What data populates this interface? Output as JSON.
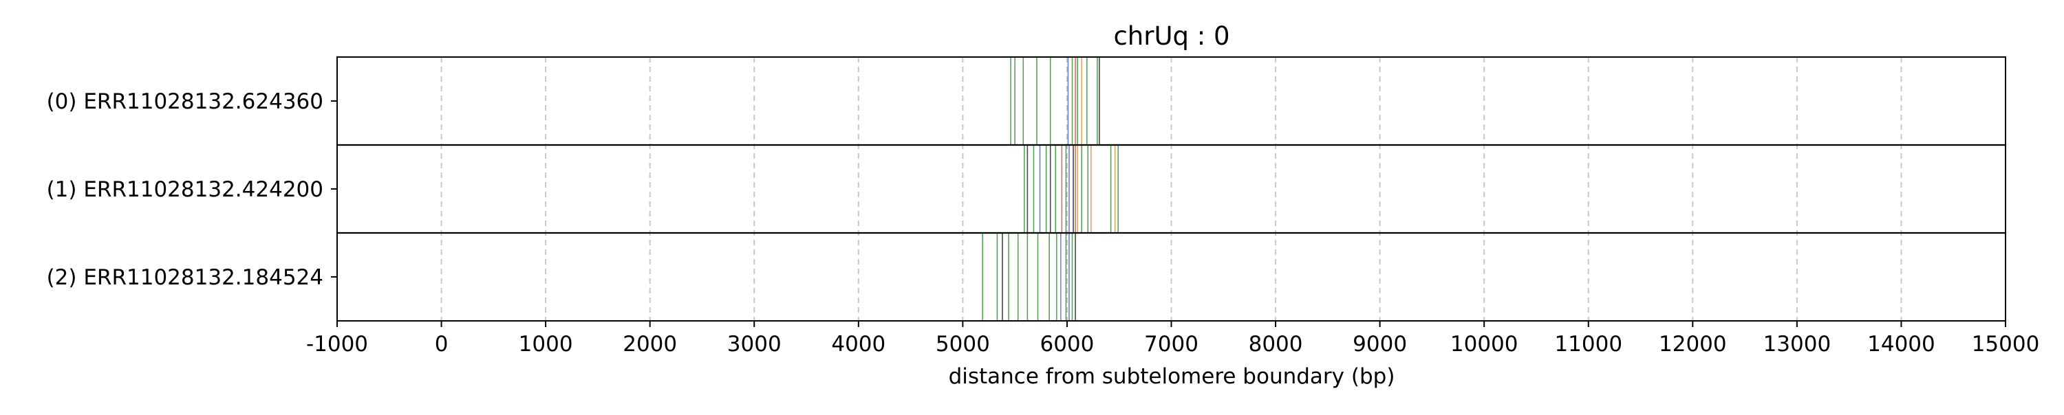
{
  "chart_data": {
    "type": "event-track",
    "title": "chrUq : 0",
    "xlabel": "distance from subtelomere boundary (bp)",
    "ylabel": "",
    "xlim": [
      -1000,
      15000
    ],
    "x_ticks": [
      -1000,
      0,
      1000,
      2000,
      3000,
      4000,
      5000,
      6000,
      7000,
      8000,
      9000,
      10000,
      11000,
      12000,
      13000,
      14000,
      15000
    ],
    "x_tick_labels": [
      "-1000",
      "0",
      "1000",
      "2000",
      "3000",
      "4000",
      "5000",
      "6000",
      "7000",
      "8000",
      "9000",
      "10000",
      "11000",
      "12000",
      "13000",
      "14000",
      "15000"
    ],
    "grid": {
      "x": true,
      "style": "dashed",
      "color": "#c8c8c8"
    },
    "series_colors": {
      "green": "#2e8b2e",
      "red": "#d24a3a",
      "blue": "#4a5fd2",
      "orange": "#e0902e",
      "black": "#1a1a1a"
    },
    "rows": [
      {
        "label": "(0) ERR11028132.624360",
        "events": [
          {
            "x": 5460,
            "color": "#2e8b2e"
          },
          {
            "x": 5500,
            "color": "#2e8b2e"
          },
          {
            "x": 5580,
            "color": "#2e8b2e"
          },
          {
            "x": 5710,
            "color": "#2e8b2e"
          },
          {
            "x": 5840,
            "color": "#2e8b2e"
          },
          {
            "x": 6010,
            "color": "#4a5fd2"
          },
          {
            "x": 6050,
            "color": "#2e8b2e"
          },
          {
            "x": 6080,
            "color": "#d24a3a"
          },
          {
            "x": 6100,
            "color": "#2e8b2e"
          },
          {
            "x": 6140,
            "color": "#e0902e"
          },
          {
            "x": 6190,
            "color": "#2e8b2e"
          },
          {
            "x": 6290,
            "color": "#2e8b2e"
          },
          {
            "x": 6310,
            "color": "#1a1a1a"
          }
        ]
      },
      {
        "label": "(1) ERR11028132.424200",
        "events": [
          {
            "x": 5590,
            "color": "#2e8b2e"
          },
          {
            "x": 5620,
            "color": "#1a1a1a"
          },
          {
            "x": 5680,
            "color": "#2e8b2e"
          },
          {
            "x": 5740,
            "color": "#4a5fd2"
          },
          {
            "x": 5800,
            "color": "#2e8b2e"
          },
          {
            "x": 5840,
            "color": "#1a1a1a"
          },
          {
            "x": 5890,
            "color": "#2e8b2e"
          },
          {
            "x": 5950,
            "color": "#d24a3a"
          },
          {
            "x": 5990,
            "color": "#2e8b2e"
          },
          {
            "x": 6020,
            "color": "#4a5fd2"
          },
          {
            "x": 6060,
            "color": "#1a1a1a"
          },
          {
            "x": 6080,
            "color": "#d24a3a"
          },
          {
            "x": 6100,
            "color": "#e0902e"
          },
          {
            "x": 6140,
            "color": "#2e8b2e"
          },
          {
            "x": 6200,
            "color": "#2e8b2e"
          },
          {
            "x": 6230,
            "color": "#e0902e"
          },
          {
            "x": 6420,
            "color": "#2e8b2e"
          },
          {
            "x": 6460,
            "color": "#e0902e"
          },
          {
            "x": 6490,
            "color": "#2e8b2e"
          }
        ]
      },
      {
        "label": "(2) ERR11028132.184524",
        "events": [
          {
            "x": 5190,
            "color": "#2e8b2e"
          },
          {
            "x": 5330,
            "color": "#2e8b2e"
          },
          {
            "x": 5380,
            "color": "#1a1a1a"
          },
          {
            "x": 5440,
            "color": "#2e8b2e"
          },
          {
            "x": 5530,
            "color": "#2e8b2e"
          },
          {
            "x": 5620,
            "color": "#2e8b2e"
          },
          {
            "x": 5720,
            "color": "#2e8b2e"
          },
          {
            "x": 5830,
            "color": "#2e8b2e"
          },
          {
            "x": 5900,
            "color": "#2e8b2e"
          },
          {
            "x": 5940,
            "color": "#4a5fd2"
          },
          {
            "x": 5990,
            "color": "#2e8b2e"
          },
          {
            "x": 6020,
            "color": "#4a5fd2"
          },
          {
            "x": 6050,
            "color": "#2e8b2e"
          },
          {
            "x": 6080,
            "color": "#1a1a1a"
          }
        ]
      }
    ]
  }
}
